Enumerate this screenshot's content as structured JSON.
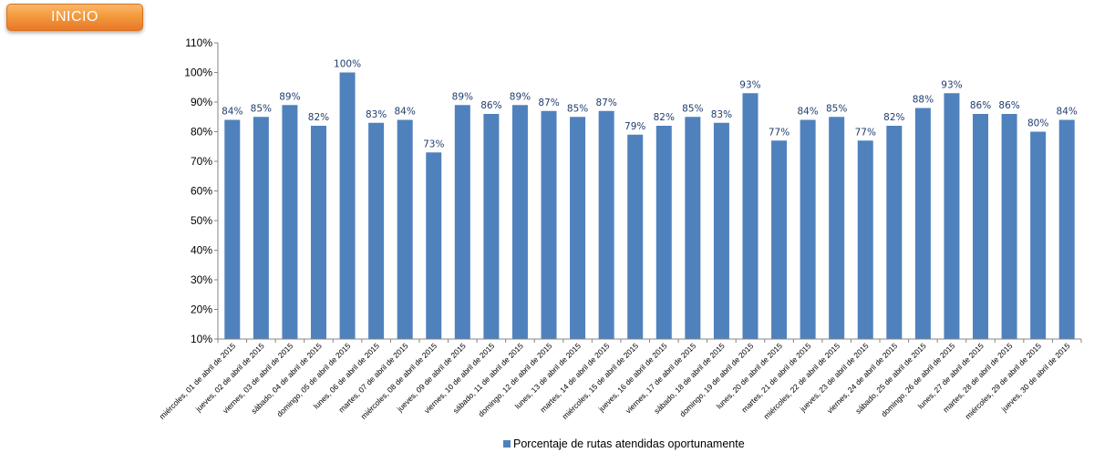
{
  "nav": {
    "home_label": "INICIO"
  },
  "colors": {
    "bar": "#4f81bd",
    "button": "#f39a3c",
    "data_label": "#1f3c6e",
    "grid": "#d9d9d9"
  },
  "chart_data": {
    "type": "bar",
    "title": "",
    "xlabel": "",
    "ylabel": "",
    "ylim": [
      10,
      110
    ],
    "yticks": [
      "10%",
      "20%",
      "30%",
      "40%",
      "50%",
      "60%",
      "70%",
      "80%",
      "90%",
      "100%",
      "110%"
    ],
    "ytick_values": [
      10,
      20,
      30,
      40,
      50,
      60,
      70,
      80,
      90,
      100,
      110
    ],
    "legend_position": "bottom",
    "grid": false,
    "categories": [
      "miércoles, 01 de abril de 2015",
      "jueves, 02 de abril de 2015",
      "viernes, 03 de abril de 2015",
      "sábado, 04 de abril de 2015",
      "domingo, 05 de abril de 2015",
      "lunes, 06 de abril de 2015",
      "martes, 07 de abril de 2015",
      "miércoles, 08 de abril de 2015",
      "jueves, 09 de abril de 2015",
      "viernes, 10 de abril de 2015",
      "sábado, 11 de abril de 2015",
      "domingo, 12 de abril de 2015",
      "lunes, 13 de abril de 2015",
      "martes, 14 de abril de 2015",
      "miércoles, 15 de abril de 2015",
      "jueves, 16 de abril de 2015",
      "viernes, 17 de abril de 2015",
      "sábado, 18 de abril de 2015",
      "domingo, 19 de abril de 2015",
      "lunes, 20 de abril de 2015",
      "martes, 21 de abril de 2015",
      "miércoles, 22 de abril de 2015",
      "jueves, 23 de abril de 2015",
      "viernes, 24 de abril de 2015",
      "sábado, 25 de abril de 2015",
      "domingo, 26 de abril de 2015",
      "lunes, 27 de abril de 2015",
      "martes, 28 de abril de 2015",
      "miércoles, 29 de abril de 2015",
      "jueves, 30 de abril de 2015"
    ],
    "series": [
      {
        "name": "Porcentaje de rutas atendidas oportunamente",
        "values": [
          84,
          85,
          89,
          82,
          100,
          83,
          84,
          73,
          89,
          86,
          89,
          87,
          85,
          87,
          79,
          82,
          85,
          83,
          93,
          77,
          84,
          85,
          77,
          82,
          88,
          93,
          86,
          86,
          80,
          84
        ],
        "labels": [
          "84%",
          "85%",
          "89%",
          "82%",
          "100%",
          "83%",
          "84%",
          "73%",
          "89%",
          "86%",
          "89%",
          "87%",
          "85%",
          "87%",
          "79%",
          "82%",
          "85%",
          "83%",
          "93%",
          "77%",
          "84%",
          "85%",
          "77%",
          "82%",
          "88%",
          "93%",
          "86%",
          "86%",
          "80%",
          "84%"
        ]
      }
    ]
  }
}
